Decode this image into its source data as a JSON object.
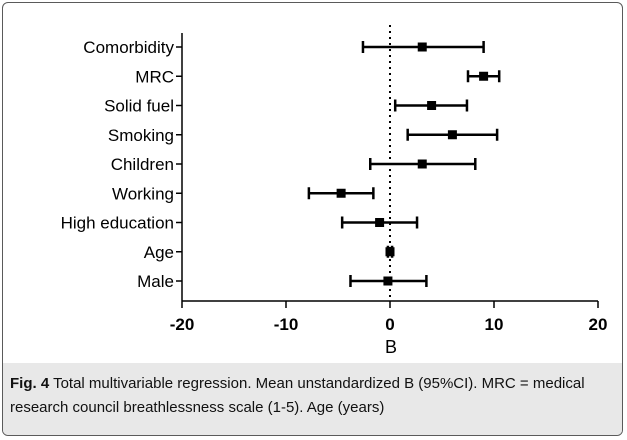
{
  "chart_data": {
    "type": "scatter",
    "subtype": "forest-plot",
    "categories": [
      "Comorbidity",
      "MRC",
      "Solid fuel",
      "Smoking",
      "Children",
      "Working",
      "High education",
      "Age",
      "Male"
    ],
    "estimate": [
      3.1,
      9.0,
      4.0,
      6.0,
      3.1,
      -4.7,
      -1.0,
      0.0,
      -0.2
    ],
    "ci_low": [
      -2.6,
      7.5,
      0.5,
      1.7,
      -1.9,
      -7.8,
      -4.6,
      -0.2,
      -3.8
    ],
    "ci_high": [
      9.0,
      10.5,
      7.4,
      10.3,
      8.2,
      -1.6,
      2.6,
      0.2,
      3.5
    ],
    "xlabel": "B",
    "xlim": [
      -20,
      20
    ],
    "xticks": [
      "-20",
      "-10",
      "0",
      "10",
      "20"
    ],
    "reference_line": 0
  },
  "caption": {
    "fig_label": "Fig. 4",
    "text": " Total multivariable regression. Mean unstandardized B (95%CI). MRC = medical research council breathlessness scale (1-5). Age (years)"
  }
}
